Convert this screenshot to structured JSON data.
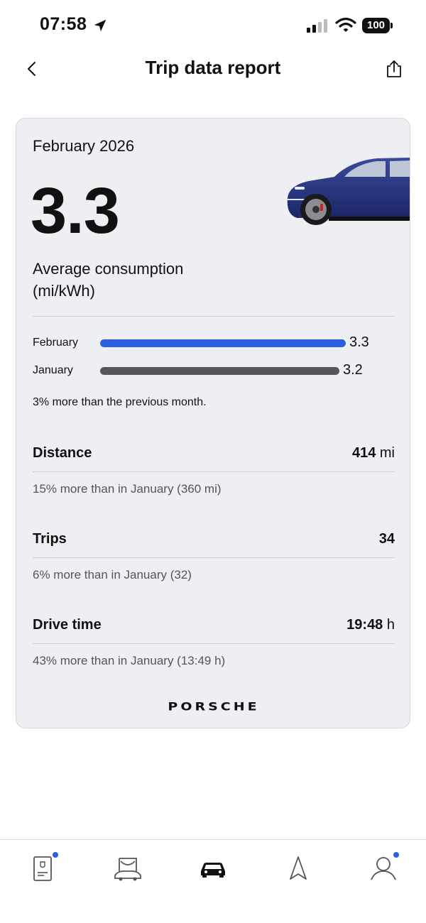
{
  "status_bar": {
    "time": "07:58",
    "battery": "100"
  },
  "header": {
    "title": "Trip data report"
  },
  "card": {
    "month": "February 2026",
    "avg_value": "3.3",
    "avg_label": "Average consumption (mi/kWh)",
    "bars": [
      {
        "label": "February",
        "value": "3.3",
        "color": "#2c5fe0"
      },
      {
        "label": "January",
        "value": "3.2",
        "color": "#55565a"
      }
    ],
    "comparison": "3% more than the previous month.",
    "stats": [
      {
        "label": "Distance",
        "value": "414",
        "unit": "mi",
        "note": "15% more than in January (360 mi)"
      },
      {
        "label": "Trips",
        "value": "34",
        "unit": "",
        "note": "6% more than in January (32)"
      },
      {
        "label": "Drive time",
        "value": "19:48",
        "unit": "h",
        "note": "43% more than in January (13:49 h)"
      }
    ],
    "brand": "PORSCHE"
  },
  "tabs": [
    {
      "icon": "phone-key-icon",
      "badge": true
    },
    {
      "icon": "vehicle-top-icon",
      "badge": false
    },
    {
      "icon": "car-icon",
      "badge": false,
      "active": true
    },
    {
      "icon": "navigation-icon",
      "badge": false
    },
    {
      "icon": "profile-icon",
      "badge": true
    }
  ],
  "colors": {
    "accent": "#2c5fe0",
    "card_bg": "#eeeff2",
    "previous_bar": "#55565a"
  }
}
